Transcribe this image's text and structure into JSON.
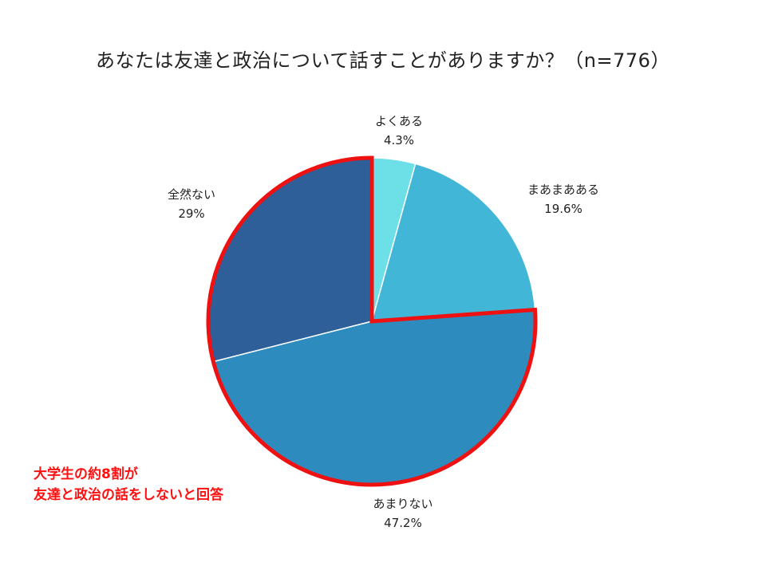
{
  "chart_data": {
    "type": "pie",
    "title": "あなたは友達と政治について話すことがありますか？（n=776）",
    "slices": [
      {
        "label": "よくある",
        "value": 4.3,
        "value_label": "4.3%",
        "color": "#6ce0e6"
      },
      {
        "label": "まあまあある",
        "value": 19.6,
        "value_label": "19.6%",
        "color": "#42b6d6"
      },
      {
        "label": "あまりない",
        "value": 47.2,
        "value_label": "47.2%",
        "color": "#2e8bbd"
      },
      {
        "label": "全然ない",
        "value": 29,
        "value_label": "29%",
        "color": "#2e5f98"
      }
    ],
    "start": "12 o'clock, clockwise",
    "highlight": {
      "slices": [
        "あまりない",
        "全然ない"
      ],
      "outline_color": "#ee1111"
    },
    "annotation": [
      "大学生の約8割が",
      "友達と政治の話をしないと回答"
    ]
  }
}
